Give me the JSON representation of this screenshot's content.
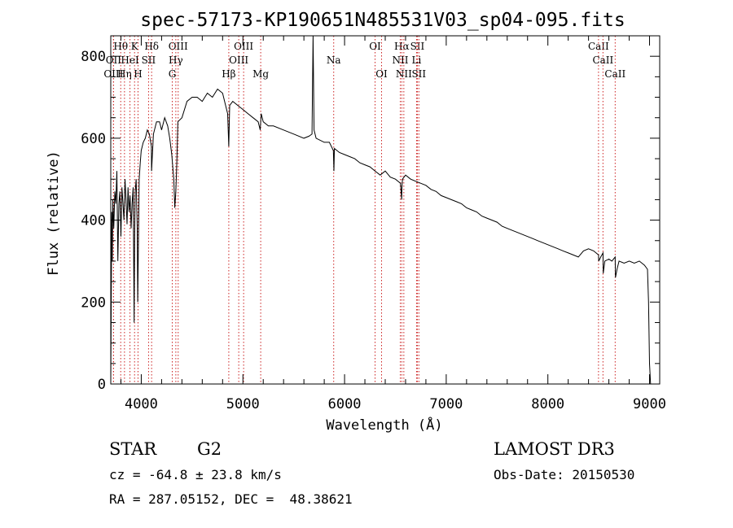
{
  "chart_data": {
    "type": "line",
    "title": "spec-57173-KP190651N485531V03_sp04-095.fits",
    "xlabel": "Wavelength (Å)",
    "ylabel": "Flux (relative)",
    "xlim": [
      3700,
      9100
    ],
    "ylim": [
      0,
      850
    ],
    "xticks": [
      4000,
      5000,
      6000,
      7000,
      8000,
      9000
    ],
    "yticks": [
      0,
      200,
      400,
      600,
      800
    ],
    "grid": false,
    "series": [
      {
        "name": "spectrum",
        "x": [
          3700,
          3710,
          3715,
          3720,
          3730,
          3740,
          3750,
          3760,
          3770,
          3780,
          3790,
          3800,
          3810,
          3820,
          3830,
          3840,
          3850,
          3860,
          3870,
          3880,
          3890,
          3900,
          3910,
          3920,
          3930,
          3935,
          3940,
          3950,
          3960,
          3965,
          3970,
          3980,
          3990,
          4000,
          4020,
          4040,
          4060,
          4080,
          4100,
          4101,
          4120,
          4150,
          4180,
          4200,
          4230,
          4260,
          4280,
          4300,
          4320,
          4330,
          4340,
          4350,
          4360,
          4400,
          4450,
          4500,
          4550,
          4600,
          4650,
          4700,
          4750,
          4800,
          4830,
          4850,
          4861,
          4870,
          4900,
          4950,
          5000,
          5050,
          5100,
          5150,
          5170,
          5180,
          5200,
          5250,
          5300,
          5400,
          5500,
          5600,
          5650,
          5680,
          5690,
          5700,
          5720,
          5800,
          5850,
          5890,
          5895,
          5900,
          5950,
          6000,
          6050,
          6100,
          6150,
          6200,
          6250,
          6300,
          6350,
          6400,
          6450,
          6500,
          6550,
          6562,
          6564,
          6570,
          6600,
          6650,
          6700,
          6750,
          6800,
          6850,
          6900,
          6950,
          7000,
          7050,
          7100,
          7150,
          7200,
          7250,
          7300,
          7350,
          7400,
          7450,
          7500,
          7550,
          7600,
          7650,
          7700,
          7750,
          7800,
          7850,
          7900,
          7950,
          8000,
          8050,
          8100,
          8150,
          8200,
          8250,
          8300,
          8350,
          8400,
          8450,
          8498,
          8500,
          8520,
          8542,
          8545,
          8560,
          8600,
          8630,
          8662,
          8665,
          8680,
          8700,
          8750,
          8800,
          8850,
          8900,
          8950,
          8980,
          8990,
          9000,
          9010
        ],
        "values": [
          0,
          420,
          300,
          450,
          380,
          470,
          440,
          520,
          300,
          440,
          470,
          360,
          480,
          440,
          400,
          500,
          450,
          390,
          480,
          420,
          460,
          380,
          440,
          480,
          150,
          360,
          470,
          500,
          380,
          200,
          300,
          500,
          540,
          570,
          590,
          600,
          620,
          610,
          580,
          520,
          610,
          640,
          640,
          620,
          650,
          630,
          600,
          560,
          500,
          430,
          470,
          540,
          640,
          650,
          690,
          700,
          700,
          690,
          710,
          700,
          720,
          710,
          680,
          660,
          580,
          680,
          690,
          680,
          670,
          660,
          650,
          640,
          620,
          660,
          640,
          630,
          630,
          620,
          610,
          600,
          605,
          610,
          850,
          620,
          600,
          590,
          590,
          570,
          520,
          575,
          565,
          560,
          555,
          550,
          540,
          535,
          530,
          520,
          510,
          520,
          505,
          500,
          490,
          450,
          480,
          500,
          510,
          500,
          495,
          490,
          485,
          475,
          470,
          460,
          455,
          450,
          445,
          440,
          430,
          425,
          420,
          410,
          405,
          400,
          395,
          385,
          380,
          375,
          370,
          365,
          360,
          355,
          350,
          345,
          340,
          335,
          330,
          325,
          320,
          315,
          310,
          325,
          330,
          325,
          315,
          300,
          310,
          320,
          270,
          300,
          305,
          300,
          310,
          260,
          280,
          300,
          295,
          300,
          295,
          300,
          290,
          280,
          200,
          50,
          0
        ]
      }
    ],
    "spectral_lines": [
      {
        "label": "Hθ",
        "x": 3798,
        "row": 0
      },
      {
        "label": "K",
        "x": 3934,
        "row": 0
      },
      {
        "label": "Hδ",
        "x": 4102,
        "row": 0
      },
      {
        "label": "OIII",
        "x": 4363,
        "row": 0
      },
      {
        "label": "OIII",
        "x": 5007,
        "row": 0
      },
      {
        "label": "OI",
        "x": 6300,
        "row": 0
      },
      {
        "label": "Hα",
        "x": 6563,
        "row": 0
      },
      {
        "label": "SII",
        "x": 6716,
        "row": 0
      },
      {
        "label": "CaII",
        "x": 8498,
        "row": 0
      },
      {
        "label": "OII",
        "x": 3727,
        "row": 1
      },
      {
        "label": "HeI",
        "x": 3889,
        "row": 1
      },
      {
        "label": "SII",
        "x": 4072,
        "row": 1
      },
      {
        "label": "Hγ",
        "x": 4340,
        "row": 1
      },
      {
        "label": "OIII",
        "x": 4959,
        "row": 1
      },
      {
        "label": "Na",
        "x": 5893,
        "row": 1
      },
      {
        "label": "NII",
        "x": 6548,
        "row": 1
      },
      {
        "label": "Li",
        "x": 6708,
        "row": 1
      },
      {
        "label": "CaII",
        "x": 8542,
        "row": 1
      },
      {
        "label": "OIII",
        "x": 3727,
        "row": 2
      },
      {
        "label": "Hη",
        "x": 3835,
        "row": 2
      },
      {
        "label": "H",
        "x": 3968,
        "row": 2
      },
      {
        "label": "G",
        "x": 4305,
        "row": 2
      },
      {
        "label": "Hβ",
        "x": 4861,
        "row": 2
      },
      {
        "label": "Mg",
        "x": 5175,
        "row": 2
      },
      {
        "label": "OI",
        "x": 6364,
        "row": 2
      },
      {
        "label": "NII",
        "x": 6583,
        "row": 2
      },
      {
        "label": "SII",
        "x": 6731,
        "row": 2
      },
      {
        "label": "CaII",
        "x": 8662,
        "row": 2
      }
    ],
    "line_color": "#cc2222"
  },
  "info": {
    "class": "STAR",
    "subclass": "G2",
    "survey": "LAMOST DR3",
    "cz": "cz = -64.8 ± 23.8 km/s",
    "obs_date": "Obs-Date: 20150530",
    "coords": "RA = 287.05152, DEC =  48.38621"
  }
}
